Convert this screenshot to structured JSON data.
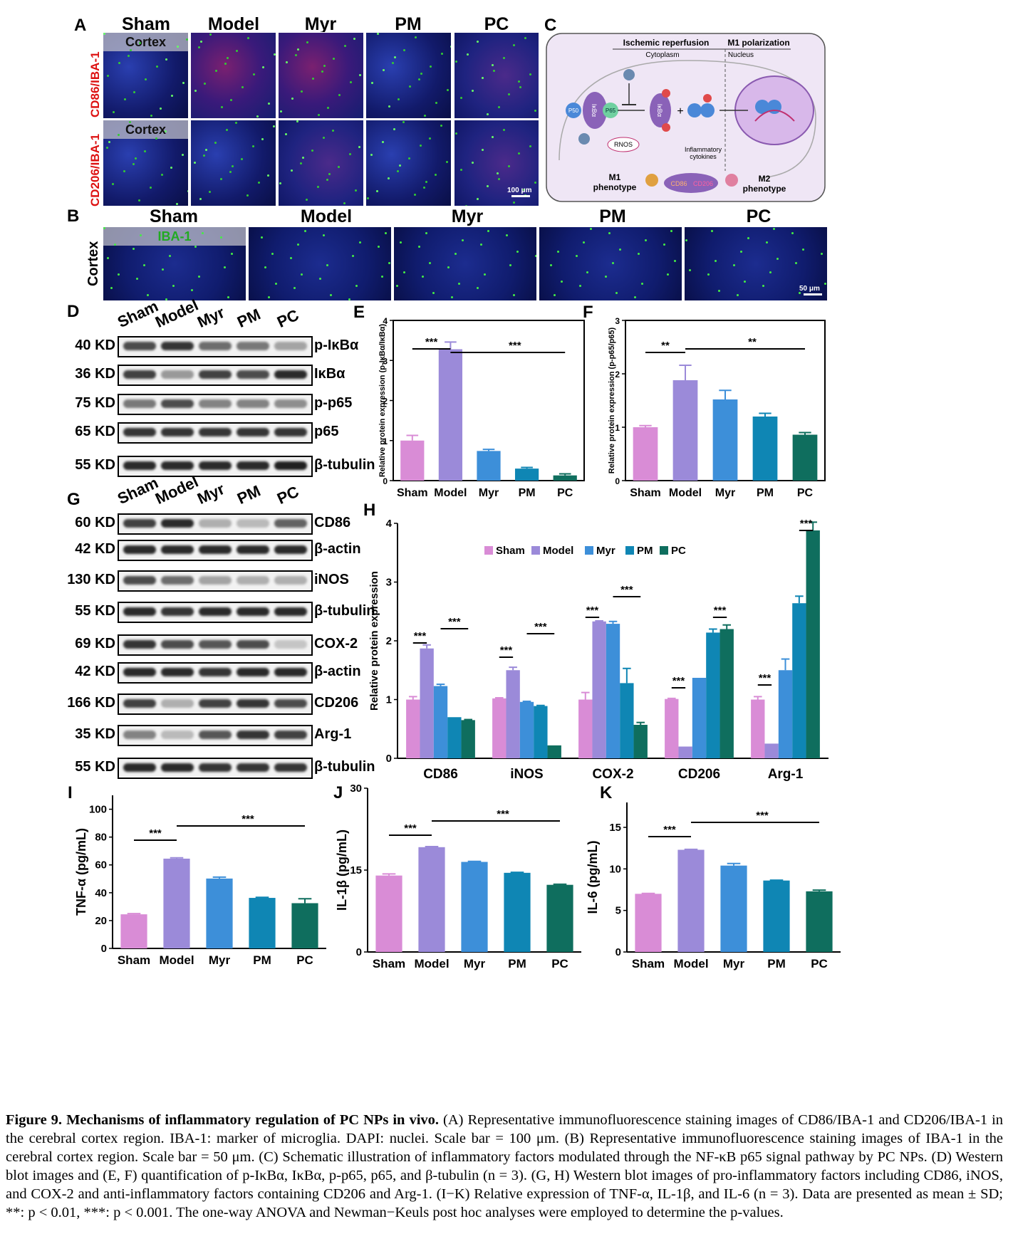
{
  "panel_a": {
    "label": "A",
    "groups": [
      "Sham",
      "Model",
      "Myr",
      "PM",
      "PC"
    ],
    "row1_stain": "CD86/IBA-1",
    "row2_stain": "CD206/IBA-1",
    "region": "Cortex",
    "scale": "100 μm"
  },
  "panel_b": {
    "label": "B",
    "groups": [
      "Sham",
      "Model",
      "Myr",
      "PM",
      "PC"
    ],
    "stain": "IBA-1",
    "region": "Cortex",
    "scale": "50 μm"
  },
  "panel_c": {
    "label": "C",
    "left_title": "Ischemic reperfusion",
    "right_title": "M1  polarization",
    "cytoplasm": "Cytoplasm",
    "nucleus": "Nucleus",
    "p50": "P50",
    "p65": "P65",
    "ikba": "IκBα",
    "p": "P",
    "rnos": "RNOS",
    "cytokines_1": "Inflammatory",
    "cytokines_2": "cytokines",
    "m1_1": "M1",
    "m1_2": "phenotype",
    "m2_1": "M2",
    "m2_2": "phenotype",
    "cd86": "CD86",
    "cd206": "CD206",
    "plus": "+"
  },
  "panel_d": {
    "label": "D",
    "lanes": [
      "Sham",
      "Model",
      "Myr",
      "PM",
      "PC"
    ],
    "rows": [
      {
        "kd": "40 KD",
        "protein": "p-IκBα",
        "intensity": [
          0.75,
          0.85,
          0.6,
          0.55,
          0.35
        ]
      },
      {
        "kd": "36 KD",
        "protein": "IκBα",
        "intensity": [
          0.8,
          0.4,
          0.8,
          0.75,
          0.9
        ]
      },
      {
        "kd": "75 KD",
        "protein": "p-p65",
        "intensity": [
          0.55,
          0.75,
          0.5,
          0.5,
          0.45
        ]
      },
      {
        "kd": "65 KD",
        "protein": "p65",
        "intensity": [
          0.85,
          0.85,
          0.85,
          0.85,
          0.85
        ]
      },
      {
        "kd": "55 KD",
        "protein": "β-tubulin",
        "intensity": [
          0.9,
          0.9,
          0.9,
          0.9,
          0.95
        ]
      }
    ]
  },
  "panel_g": {
    "label": "G",
    "lanes": [
      "Sham",
      "Model",
      "Myr",
      "PM",
      "PC"
    ],
    "rows": [
      {
        "kd": "60 KD",
        "protein": "CD86",
        "intensity": [
          0.8,
          0.9,
          0.3,
          0.25,
          0.65
        ]
      },
      {
        "kd": "42 KD",
        "protein": "β-actin",
        "intensity": [
          0.9,
          0.9,
          0.9,
          0.9,
          0.9
        ]
      },
      {
        "kd": "130 KD",
        "protein": "iNOS",
        "intensity": [
          0.75,
          0.6,
          0.35,
          0.3,
          0.3
        ]
      },
      {
        "kd": "55 KD",
        "protein": "β-tubulin",
        "intensity": [
          0.9,
          0.85,
          0.9,
          0.9,
          0.9
        ]
      },
      {
        "kd": "69 KD",
        "protein": "COX-2",
        "intensity": [
          0.85,
          0.75,
          0.7,
          0.75,
          0.2
        ]
      },
      {
        "kd": "42 KD",
        "protein": "β-actin",
        "intensity": [
          0.9,
          0.9,
          0.85,
          0.9,
          0.9
        ]
      },
      {
        "kd": "166 KD",
        "protein": "CD206",
        "intensity": [
          0.8,
          0.3,
          0.8,
          0.85,
          0.75
        ]
      },
      {
        "kd": "35 KD",
        "protein": "Arg-1",
        "intensity": [
          0.5,
          0.25,
          0.7,
          0.85,
          0.8
        ]
      },
      {
        "kd": "55 KD",
        "protein": "β-tubulin",
        "intensity": [
          0.9,
          0.9,
          0.85,
          0.85,
          0.85
        ]
      }
    ]
  },
  "colors": {
    "Sham": "#d98cd6",
    "Model": "#9b8ad9",
    "Myr": "#3d8fd9",
    "PM": "#0f86b4",
    "PC": "#0f6e5e"
  },
  "sig": {
    "two": "**",
    "three": "***"
  },
  "chart_data": [
    {
      "id": "E",
      "type": "bar",
      "categories": [
        "Sham",
        "Model",
        "Myr",
        "PM",
        "PC"
      ],
      "values": [
        1.0,
        3.28,
        0.74,
        0.3,
        0.13
      ],
      "errors": [
        0.13,
        0.18,
        0.04,
        0.03,
        0.04
      ],
      "ylabel": "Relative protein expression (p-IκBα/IκBα)",
      "ylim": [
        0,
        4
      ],
      "yticks": [
        0,
        1,
        2,
        3,
        4
      ],
      "sig": [
        {
          "from": 0,
          "to": 1,
          "label": "***"
        },
        {
          "from": 1,
          "to": 4,
          "label": "***"
        }
      ]
    },
    {
      "id": "F",
      "type": "bar",
      "categories": [
        "Sham",
        "Model",
        "Myr",
        "PM",
        "PC"
      ],
      "values": [
        1.0,
        1.88,
        1.52,
        1.2,
        0.86
      ],
      "errors": [
        0.03,
        0.28,
        0.17,
        0.06,
        0.04
      ],
      "ylabel": "Relative protein expression (p-p65/p65)",
      "ylim": [
        0,
        3
      ],
      "yticks": [
        0,
        1,
        2,
        3
      ],
      "sig": [
        {
          "from": 0,
          "to": 1,
          "label": "**"
        },
        {
          "from": 1,
          "to": 4,
          "label": "**"
        }
      ]
    },
    {
      "id": "H",
      "type": "bar",
      "categories": [
        "CD86",
        "iNOS",
        "COX-2",
        "CD206",
        "Arg-1"
      ],
      "series": [
        {
          "name": "Sham",
          "values": [
            1.0,
            1.02,
            1.0,
            1.01,
            1.0
          ],
          "errors": [
            0.05,
            0.01,
            0.12,
            0.01,
            0.05
          ]
        },
        {
          "name": "Model",
          "values": [
            1.87,
            1.5,
            2.33,
            0.2,
            0.25
          ],
          "errors": [
            0.06,
            0.05,
            0.01,
            0.0,
            0.0
          ]
        },
        {
          "name": "Myr",
          "values": [
            1.23,
            0.96,
            2.29,
            1.37,
            1.5
          ],
          "errors": [
            0.03,
            0.01,
            0.04,
            0.0,
            0.19
          ]
        },
        {
          "name": "PM",
          "values": [
            0.7,
            0.89,
            1.28,
            2.14,
            2.64
          ],
          "errors": [
            0.0,
            0.01,
            0.25,
            0.06,
            0.12
          ]
        },
        {
          "name": "PC",
          "values": [
            0.65,
            0.22,
            0.57,
            2.2,
            3.88
          ],
          "errors": [
            0.01,
            0.0,
            0.04,
            0.07,
            0.14
          ]
        }
      ],
      "ylabel": "Relative protein expression",
      "ylim": [
        0,
        4
      ],
      "yticks": [
        0,
        1,
        2,
        3,
        4
      ],
      "legend": "top"
    },
    {
      "id": "I",
      "type": "bar",
      "categories": [
        "Sham",
        "Model",
        "Myr",
        "PM",
        "PC"
      ],
      "values": [
        24.5,
        64.5,
        50.2,
        36.3,
        32.5
      ],
      "errors": [
        0.5,
        0.6,
        1.0,
        0.4,
        3.2
      ],
      "ylabel": "TNF-α (pg/mL)",
      "ylim": [
        0,
        110
      ],
      "yticks": [
        0,
        20,
        40,
        60,
        80,
        100
      ],
      "sig": [
        {
          "from": 0,
          "to": 1,
          "label": "***"
        },
        {
          "from": 1,
          "to": 4,
          "label": "***"
        }
      ]
    },
    {
      "id": "J",
      "type": "bar",
      "categories": [
        "Sham",
        "Model",
        "Myr",
        "PM",
        "PC"
      ],
      "values": [
        14.0,
        19.2,
        16.5,
        14.5,
        12.3
      ],
      "errors": [
        0.3,
        0.1,
        0.1,
        0.1,
        0.1
      ],
      "ylabel": "IL-1β (pg/mL)",
      "ylim": [
        0,
        30
      ],
      "yticks": [
        0,
        15,
        30
      ],
      "sig": [
        {
          "from": 0,
          "to": 1,
          "label": "***"
        },
        {
          "from": 1,
          "to": 4,
          "label": "***"
        }
      ]
    },
    {
      "id": "K",
      "type": "bar",
      "categories": [
        "Sham",
        "Model",
        "Myr",
        "PM",
        "PC"
      ],
      "values": [
        7.0,
        12.3,
        10.4,
        8.6,
        7.3
      ],
      "errors": [
        0.05,
        0.05,
        0.25,
        0.05,
        0.15
      ],
      "ylabel": "IL-6 (pg/mL)",
      "ylim": [
        0,
        18
      ],
      "yticks": [
        0,
        5,
        10,
        15
      ],
      "sig": [
        {
          "from": 0,
          "to": 1,
          "label": "***"
        },
        {
          "from": 1,
          "to": 4,
          "label": "***"
        }
      ]
    }
  ],
  "caption": {
    "fig": "Figure 9.",
    "title": "Mechanisms of inflammatory regulation of PC NPs in vivo.",
    "body": "(A) Representative immunofluorescence staining images of CD86/IBA-1 and CD206/IBA-1 in the cerebral cortex region. IBA-1: marker of microglia. DAPI: nuclei. Scale bar = 100 μm. (B) Representative immunofluorescence staining images of IBA-1 in the cerebral cortex region. Scale bar = 50 μm. (C) Schematic illustration of inflammatory factors modulated through the NF-κB p65 signal pathway by PC NPs. (D) Western blot images and (E, F) quantification of p-IκBα, IκBα, p-p65, p65, and β-tubulin (n = 3). (G, H) Western blot images of pro-inflammatory factors including CD86, iNOS, and COX-2 and anti-inflammatory factors containing CD206 and Arg-1. (I−K) Relative expression of TNF-α, IL-1β, and IL-6 (n = 3). Data are presented as mean ± SD; **: p < 0.01, ***: p < 0.001. The one-way ANOVA and Newman−Keuls post hoc analyses were employed to determine the p-values."
  },
  "panel_labels": {
    "e": "E",
    "f": "F",
    "h": "H",
    "i": "I",
    "j": "J",
    "k": "K"
  }
}
